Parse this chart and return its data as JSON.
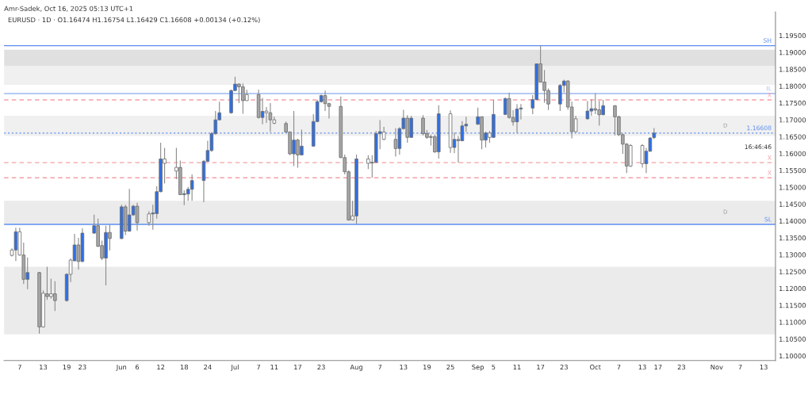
{
  "chart_data": {
    "type": "candlestick",
    "title": "EURUSD · 1D · O1.16474 H1.16754 L1.16429 C1.16608 +0.00134 (+0.12%)",
    "annotations": [
      "Amr-Sadek, Oct 16, 2025 05:13 UTC+1",
      "16:46:46"
    ],
    "x": [
      "2025-05-05",
      "2025-05-06",
      "2025-05-07",
      "2025-05-08",
      "2025-05-09",
      "2025-05-12",
      "2025-05-13",
      "2025-05-14",
      "2025-05-15",
      "2025-05-16",
      "2025-05-19",
      "2025-05-20",
      "2025-05-21",
      "2025-05-22",
      "2025-05-23",
      "2025-05-26",
      "2025-05-27",
      "2025-05-28",
      "2025-05-29",
      "2025-05-30",
      "2025-06-02",
      "2025-06-03",
      "2025-06-04",
      "2025-06-05",
      "2025-06-06",
      "2025-06-09",
      "2025-06-10",
      "2025-06-11",
      "2025-06-12",
      "2025-06-13",
      "2025-06-16",
      "2025-06-17",
      "2025-06-18",
      "2025-06-19",
      "2025-06-20",
      "2025-06-23",
      "2025-06-24",
      "2025-06-25",
      "2025-06-26",
      "2025-06-27",
      "2025-06-30",
      "2025-07-01",
      "2025-07-02",
      "2025-07-03",
      "2025-07-04",
      "2025-07-07",
      "2025-07-08",
      "2025-07-09",
      "2025-07-10",
      "2025-07-11",
      "2025-07-14",
      "2025-07-15",
      "2025-07-16",
      "2025-07-17",
      "2025-07-18",
      "2025-07-21",
      "2025-07-22",
      "2025-07-23",
      "2025-07-24",
      "2025-07-25",
      "2025-07-28",
      "2025-07-29",
      "2025-07-30",
      "2025-07-31",
      "2025-08-01",
      "2025-08-04",
      "2025-08-05",
      "2025-08-06",
      "2025-08-07",
      "2025-08-08",
      "2025-08-11",
      "2025-08-12",
      "2025-08-13",
      "2025-08-14",
      "2025-08-15",
      "2025-08-18",
      "2025-08-19",
      "2025-08-20",
      "2025-08-21",
      "2025-08-22",
      "2025-08-25",
      "2025-08-26",
      "2025-08-27",
      "2025-08-28",
      "2025-08-29",
      "2025-09-01",
      "2025-09-02",
      "2025-09-03",
      "2025-09-04",
      "2025-09-05",
      "2025-09-08",
      "2025-09-09",
      "2025-09-10",
      "2025-09-11",
      "2025-09-12",
      "2025-09-15",
      "2025-09-16",
      "2025-09-17",
      "2025-09-18",
      "2025-09-19",
      "2025-09-22",
      "2025-09-23",
      "2025-09-24",
      "2025-09-25",
      "2025-09-26",
      "2025-09-29",
      "2025-09-30",
      "2025-10-01",
      "2025-10-02",
      "2025-10-03",
      "2025-10-06",
      "2025-10-07",
      "2025-10-08",
      "2025-10-09",
      "2025-10-10",
      "2025-10-13",
      "2025-10-14",
      "2025-10-15",
      "2025-10-16"
    ],
    "ohlc": [
      [
        1.1298,
        1.1319,
        1.1295,
        1.1314
      ],
      [
        1.1314,
        1.138,
        1.1281,
        1.1368
      ],
      [
        1.1368,
        1.138,
        1.1297,
        1.1299
      ],
      [
        1.1299,
        1.1336,
        1.1213,
        1.1227
      ],
      [
        1.1227,
        1.1292,
        1.1198,
        1.1247
      ],
      [
        1.1247,
        1.1249,
        1.1066,
        1.1086
      ],
      [
        1.1086,
        1.1194,
        1.1084,
        1.1186
      ],
      [
        1.1184,
        1.1264,
        1.1166,
        1.1176
      ],
      [
        1.1176,
        1.1229,
        1.117,
        1.1184
      ],
      [
        1.1184,
        1.1221,
        1.1133,
        1.1164
      ],
      [
        1.1164,
        1.1245,
        1.1161,
        1.1242
      ],
      [
        1.1242,
        1.1289,
        1.1219,
        1.1284
      ],
      [
        1.1282,
        1.1362,
        1.128,
        1.1329
      ],
      [
        1.1329,
        1.135,
        1.1256,
        1.128
      ],
      [
        1.128,
        1.1378,
        1.1278,
        1.1364
      ],
      [
        1.1364,
        1.1419,
        1.1362,
        1.1386
      ],
      [
        1.1386,
        1.1407,
        1.1323,
        1.1325
      ],
      [
        1.1327,
        1.1342,
        1.1284,
        1.129
      ],
      [
        1.129,
        1.1386,
        1.1209,
        1.1366
      ],
      [
        1.1366,
        1.1389,
        1.1313,
        1.1348
      ],
      [
        1.1348,
        1.1448,
        1.1346,
        1.1442
      ],
      [
        1.1442,
        1.1448,
        1.1358,
        1.137
      ],
      [
        1.137,
        1.1495,
        1.1368,
        1.1418
      ],
      [
        1.1418,
        1.1448,
        1.1415,
        1.1444
      ],
      [
        1.1444,
        1.1454,
        1.1372,
        1.1395
      ],
      [
        1.1395,
        1.1429,
        1.1386,
        1.1421
      ],
      [
        1.1421,
        1.1448,
        1.1374,
        1.1424
      ],
      [
        1.1422,
        1.1503,
        1.1407,
        1.1487
      ],
      [
        1.1487,
        1.1632,
        1.1485,
        1.1584
      ],
      [
        1.1584,
        1.1617,
        1.1511,
        1.1571
      ],
      [
        1.1548,
        1.1617,
        1.1524,
        1.1559
      ],
      [
        1.1559,
        1.1579,
        1.1477,
        1.1478
      ],
      [
        1.1478,
        1.1491,
        1.1447,
        1.1481
      ],
      [
        1.148,
        1.1501,
        1.146,
        1.1494
      ],
      [
        1.1494,
        1.1538,
        1.146,
        1.152
      ],
      [
        1.152,
        1.1581,
        1.1456,
        1.1577
      ],
      [
        1.1577,
        1.1638,
        1.1576,
        1.1609
      ],
      [
        1.1609,
        1.1664,
        1.1605,
        1.1659
      ],
      [
        1.1659,
        1.1726,
        1.1656,
        1.17
      ],
      [
        1.17,
        1.1754,
        1.1699,
        1.1721
      ],
      [
        1.1721,
        1.179,
        1.1718,
        1.1787
      ],
      [
        1.1787,
        1.1828,
        1.1785,
        1.1806
      ],
      [
        1.1806,
        1.1808,
        1.175,
        1.1798
      ],
      [
        1.1798,
        1.1808,
        1.1718,
        1.1757
      ],
      [
        1.1757,
        1.1789,
        1.1756,
        1.1775
      ],
      [
        1.1775,
        1.179,
        1.1704,
        1.1707
      ],
      [
        1.1707,
        1.1765,
        1.1687,
        1.1725
      ],
      [
        1.1721,
        1.1738,
        1.1691,
        1.1726
      ],
      [
        1.1721,
        1.175,
        1.1664,
        1.17
      ],
      [
        1.17,
        1.171,
        1.1687,
        1.169
      ],
      [
        1.1689,
        1.1695,
        1.1662,
        1.1664
      ],
      [
        1.1664,
        1.1665,
        1.1595,
        1.1599
      ],
      [
        1.1599,
        1.1726,
        1.1563,
        1.164
      ],
      [
        1.164,
        1.1644,
        1.1558,
        1.1596
      ],
      [
        1.1596,
        1.1671,
        1.1595,
        1.1622
      ],
      [
        1.1622,
        1.1717,
        1.162,
        1.1695
      ],
      [
        1.1695,
        1.1759,
        1.1693,
        1.1754
      ],
      [
        1.1754,
        1.1775,
        1.1751,
        1.1772
      ],
      [
        1.1772,
        1.1787,
        1.1726,
        1.1748
      ],
      [
        1.1748,
        1.1751,
        1.1704,
        1.174
      ],
      [
        1.174,
        1.1769,
        1.1587,
        1.1588
      ],
      [
        1.1588,
        1.1597,
        1.1538,
        1.1546
      ],
      [
        1.1546,
        1.155,
        1.1401,
        1.1403
      ],
      [
        1.1403,
        1.146,
        1.1401,
        1.1415
      ],
      [
        1.1415,
        1.1597,
        1.1391,
        1.1584
      ],
      [
        1.1584,
        1.1595,
        1.1554,
        1.1571
      ],
      [
        1.1572,
        1.1595,
        1.1529,
        1.1574
      ],
      [
        1.1574,
        1.1667,
        1.1573,
        1.1659
      ],
      [
        1.1659,
        1.1699,
        1.1613,
        1.1665
      ],
      [
        1.1664,
        1.1679,
        1.164,
        1.1642
      ],
      [
        1.1642,
        1.1675,
        1.1591,
        1.1615
      ],
      [
        1.1615,
        1.1678,
        1.1597,
        1.1674
      ],
      [
        1.1674,
        1.173,
        1.1671,
        1.1705
      ],
      [
        1.1705,
        1.1714,
        1.1632,
        1.1648
      ],
      [
        1.1648,
        1.1712,
        1.1646,
        1.1705
      ],
      [
        1.1705,
        1.1714,
        1.1654,
        1.1659
      ],
      [
        1.1659,
        1.167,
        1.1644,
        1.1648
      ],
      [
        1.1648,
        1.1656,
        1.1624,
        1.165
      ],
      [
        1.165,
        1.1656,
        1.1602,
        1.1605
      ],
      [
        1.1605,
        1.1743,
        1.1585,
        1.1718
      ],
      [
        1.1718,
        1.1728,
        1.1602,
        1.1618
      ],
      [
        1.1618,
        1.1663,
        1.1601,
        1.1642
      ],
      [
        1.1642,
        1.1652,
        1.1573,
        1.1638
      ],
      [
        1.1638,
        1.1696,
        1.1636,
        1.1682
      ],
      [
        1.1682,
        1.1709,
        1.1664,
        1.1687
      ],
      [
        1.1687,
        1.1736,
        1.1685,
        1.1709
      ],
      [
        1.1709,
        1.171,
        1.1613,
        1.164
      ],
      [
        1.164,
        1.1665,
        1.1618,
        1.1661
      ],
      [
        1.1661,
        1.1667,
        1.1632,
        1.1648
      ],
      [
        1.1648,
        1.1759,
        1.1646,
        1.1716
      ],
      [
        1.1716,
        1.1767,
        1.1714,
        1.1763
      ],
      [
        1.1763,
        1.1781,
        1.1704,
        1.1707
      ],
      [
        1.1707,
        1.1729,
        1.1683,
        1.1694
      ],
      [
        1.1694,
        1.1746,
        1.1661,
        1.1732
      ],
      [
        1.1732,
        1.1747,
        1.1701,
        1.1735
      ],
      [
        1.1735,
        1.1773,
        1.1717,
        1.176
      ],
      [
        1.176,
        1.1867,
        1.1759,
        1.1866
      ],
      [
        1.1866,
        1.192,
        1.1811,
        1.1812
      ],
      [
        1.1812,
        1.1848,
        1.1751,
        1.1787
      ],
      [
        1.1787,
        1.1793,
        1.1729,
        1.1747
      ],
      [
        1.1747,
        1.1806,
        1.1726,
        1.1802
      ],
      [
        1.1802,
        1.1819,
        1.1781,
        1.1815
      ],
      [
        1.1815,
        1.1818,
        1.173,
        1.1738
      ],
      [
        1.1738,
        1.1754,
        1.1645,
        1.1665
      ],
      [
        1.1665,
        1.1712,
        1.1664,
        1.1703
      ],
      [
        1.1703,
        1.1756,
        1.1701,
        1.1726
      ],
      [
        1.1726,
        1.1761,
        1.1712,
        1.1733
      ],
      [
        1.1733,
        1.1779,
        1.1717,
        1.1729
      ],
      [
        1.173,
        1.1756,
        1.1683,
        1.1715
      ],
      [
        1.1715,
        1.1759,
        1.1714,
        1.1742
      ],
      [
        1.1742,
        1.1743,
        1.1654,
        1.1709
      ],
      [
        1.1709,
        1.1712,
        1.1652,
        1.1656
      ],
      [
        1.1656,
        1.166,
        1.1599,
        1.1628
      ],
      [
        1.1628,
        1.1631,
        1.1542,
        1.1563
      ],
      [
        1.1563,
        1.1628,
        1.156,
        1.1624
      ],
      [
        1.1624,
        1.1628,
        1.1558,
        1.157
      ],
      [
        1.157,
        1.1617,
        1.1542,
        1.1607
      ],
      [
        1.1607,
        1.1649,
        1.1605,
        1.1646
      ],
      [
        1.16474,
        1.16754,
        1.16429,
        1.16608
      ]
    ],
    "colors": [
      "#ffffff",
      "#2f6fe4",
      "#ffffff",
      "#a6a6a6",
      "#2f6fe4",
      "#a6a6a6",
      "#ffffff",
      "#a6a6a6",
      "#ffffff",
      "#a6a6a6",
      "#2f6fe4",
      "#ffffff",
      "#2f6fe4",
      "#a6a6a6",
      "#2f6fe4",
      "#2f6fe4",
      "#a6a6a6",
      "#a6a6a6",
      "#2f6fe4",
      "#a6a6a6",
      "#2f6fe4",
      "#a6a6a6",
      "#2f6fe4",
      "#2f6fe4",
      "#a6a6a6",
      "#ffffff",
      "#2f6fe4",
      "#2f6fe4",
      "#2f6fe4",
      "#ffffff",
      "#ffffff",
      "#a6a6a6",
      "#2f6fe4",
      "#2f6fe4",
      "#2f6fe4",
      "#2f6fe4",
      "#2f6fe4",
      "#2f6fe4",
      "#2f6fe4",
      "#2f6fe4",
      "#2f6fe4",
      "#2f6fe4",
      "#a6a6a6",
      "#a6a6a6",
      "#ffffff",
      "#a6a6a6",
      "#2f6fe4",
      "#ffffff",
      "#a6a6a6",
      "#ffffff",
      "#a6a6a6",
      "#a6a6a6",
      "#2f6fe4",
      "#a6a6a6",
      "#2f6fe4",
      "#2f6fe4",
      "#2f6fe4",
      "#2f6fe4",
      "#a6a6a6",
      "#a6a6a6",
      "#a6a6a6",
      "#a6a6a6",
      "#a6a6a6",
      "#ffffff",
      "#2f6fe4",
      "#ffffff",
      "#2f6fe4",
      "#2f6fe4",
      "#2f6fe4",
      "#ffffff",
      "#a6a6a6",
      "#2f6fe4",
      "#2f6fe4",
      "#a6a6a6",
      "#2f6fe4",
      "#a6a6a6",
      "#a6a6a6",
      "#2f6fe4",
      "#a6a6a6",
      "#2f6fe4",
      "#ffffff",
      "#2f6fe4",
      "#a6a6a6",
      "#2f6fe4",
      "#2f6fe4",
      "#2f6fe4",
      "#a6a6a6",
      "#2f6fe4",
      "#ffffff",
      "#2f6fe4",
      "#2f6fe4",
      "#a6a6a6",
      "#a6a6a6",
      "#2f6fe4",
      "#2f6fe4",
      "#2f6fe4",
      "#2f6fe4",
      "#a6a6a6",
      "#a6a6a6",
      "#a6a6a6",
      "#2f6fe4",
      "#2f6fe4",
      "#a6a6a6",
      "#a6a6a6",
      "#ffffff",
      "#2f6fe4",
      "#2f6fe4",
      "#a6a6a6",
      "#a6a6a6",
      "#2f6fe4",
      "#a6a6a6",
      "#a6a6a6",
      "#a6a6a6",
      "#a6a6a6",
      "#ffffff",
      "#ffffff",
      "#2f6fe4",
      "#2f6fe4",
      "#2f6fe4"
    ],
    "xlim": [
      "2025-05-03",
      "2025-11-16"
    ],
    "xticks": [
      {
        "value": "2025-05-07",
        "label": "7"
      },
      {
        "value": "2025-05-13",
        "label": "13"
      },
      {
        "value": "2025-05-19",
        "label": "19"
      },
      {
        "value": "2025-05-23",
        "label": "23"
      },
      {
        "value": "2025-06-02",
        "label": "Jun"
      },
      {
        "value": "2025-06-06",
        "label": "6"
      },
      {
        "value": "2025-06-12",
        "label": "12"
      },
      {
        "value": "2025-06-18",
        "label": "18"
      },
      {
        "value": "2025-06-24",
        "label": "24"
      },
      {
        "value": "2025-07-01",
        "label": "Jul"
      },
      {
        "value": "2025-07-07",
        "label": "7"
      },
      {
        "value": "2025-07-11",
        "label": "11"
      },
      {
        "value": "2025-07-17",
        "label": "17"
      },
      {
        "value": "2025-07-23",
        "label": "23"
      },
      {
        "value": "2025-08-01",
        "label": "Aug"
      },
      {
        "value": "2025-08-07",
        "label": "7"
      },
      {
        "value": "2025-08-13",
        "label": "13"
      },
      {
        "value": "2025-08-19",
        "label": "19"
      },
      {
        "value": "2025-08-25",
        "label": "25"
      },
      {
        "value": "2025-09-01",
        "label": "Sep"
      },
      {
        "value": "2025-09-05",
        "label": "5"
      },
      {
        "value": "2025-09-11",
        "label": "11"
      },
      {
        "value": "2025-09-17",
        "label": "17"
      },
      {
        "value": "2025-09-23",
        "label": "23"
      },
      {
        "value": "2025-10-01",
        "label": "Oct"
      },
      {
        "value": "2025-10-07",
        "label": "7"
      },
      {
        "value": "2025-10-13",
        "label": "13"
      },
      {
        "value": "2025-10-17",
        "label": "17"
      },
      {
        "value": "2025-10-23",
        "label": "23"
      },
      {
        "value": "2025-11-01",
        "label": "Nov"
      },
      {
        "value": "2025-11-07",
        "label": "7"
      },
      {
        "value": "2025-11-13",
        "label": "13"
      }
    ],
    "ylim": [
      1.0986,
      1.202
    ],
    "yticks": [
      {
        "value": 1.1,
        "label": "1.10000"
      },
      {
        "value": 1.105,
        "label": "1.10500"
      },
      {
        "value": 1.11,
        "label": "1.11000"
      },
      {
        "value": 1.115,
        "label": "1.11500"
      },
      {
        "value": 1.12,
        "label": "1.12000"
      },
      {
        "value": 1.125,
        "label": "1.12500"
      },
      {
        "value": 1.13,
        "label": "1.13000"
      },
      {
        "value": 1.135,
        "label": "1.13500"
      },
      {
        "value": 1.14,
        "label": "1.14000"
      },
      {
        "value": 1.145,
        "label": "1.14500"
      },
      {
        "value": 1.15,
        "label": "1.15000"
      },
      {
        "value": 1.155,
        "label": "1.15500"
      },
      {
        "value": 1.16,
        "label": "1.16000"
      },
      {
        "value": 1.165,
        "label": "1.16500"
      },
      {
        "value": 1.17,
        "label": "1.17000"
      },
      {
        "value": 1.175,
        "label": "1.17500"
      },
      {
        "value": 1.18,
        "label": "1.18000"
      },
      {
        "value": 1.185,
        "label": "1.18500"
      },
      {
        "value": 1.19,
        "label": "1.19000"
      },
      {
        "value": 1.195,
        "label": "1.19500"
      }
    ],
    "bands": [
      {
        "axis": "y",
        "from": 1.1859,
        "to": 1.1908,
        "color": "#e0e0e0"
      },
      {
        "axis": "y",
        "from": 1.1804,
        "to": 1.1859,
        "color": "#f0f0f0"
      },
      {
        "axis": "y",
        "from": 1.1652,
        "to": 1.1712,
        "label": "D",
        "color": "#f0f0f0"
      },
      {
        "axis": "y",
        "from": 1.1392,
        "to": 1.146,
        "label": "D",
        "color": "#ebebeb"
      },
      {
        "axis": "y",
        "from": 1.1064,
        "to": 1.1264,
        "color": "#ebebeb"
      }
    ],
    "ref_lines": [
      {
        "axis": "y",
        "value": 1.192,
        "label": "SH",
        "color": "#5b8def",
        "line_style": "solid"
      },
      {
        "axis": "y",
        "value": 1.1778,
        "label": "IL",
        "color": "#9bb8f0",
        "line_style": "solid"
      },
      {
        "axis": "y",
        "value": 1.1759,
        "label": "X",
        "color": "#f4a0a8",
        "line_style": "dashed"
      },
      {
        "axis": "y",
        "value": 1.16608,
        "label": "1.16608",
        "color": "#5b8def",
        "line_style": "dotted"
      },
      {
        "axis": "y",
        "value": 1.1573,
        "label": "X",
        "color": "#f4a0a8",
        "line_style": "dashed"
      },
      {
        "axis": "y",
        "value": 1.1528,
        "label": "X",
        "color": "#f4a0a8",
        "line_style": "dashed"
      },
      {
        "axis": "y",
        "value": 1.139,
        "label": "SL",
        "color": "#5b8def",
        "line_style": "solid"
      }
    ],
    "grid": false,
    "legend": false
  }
}
